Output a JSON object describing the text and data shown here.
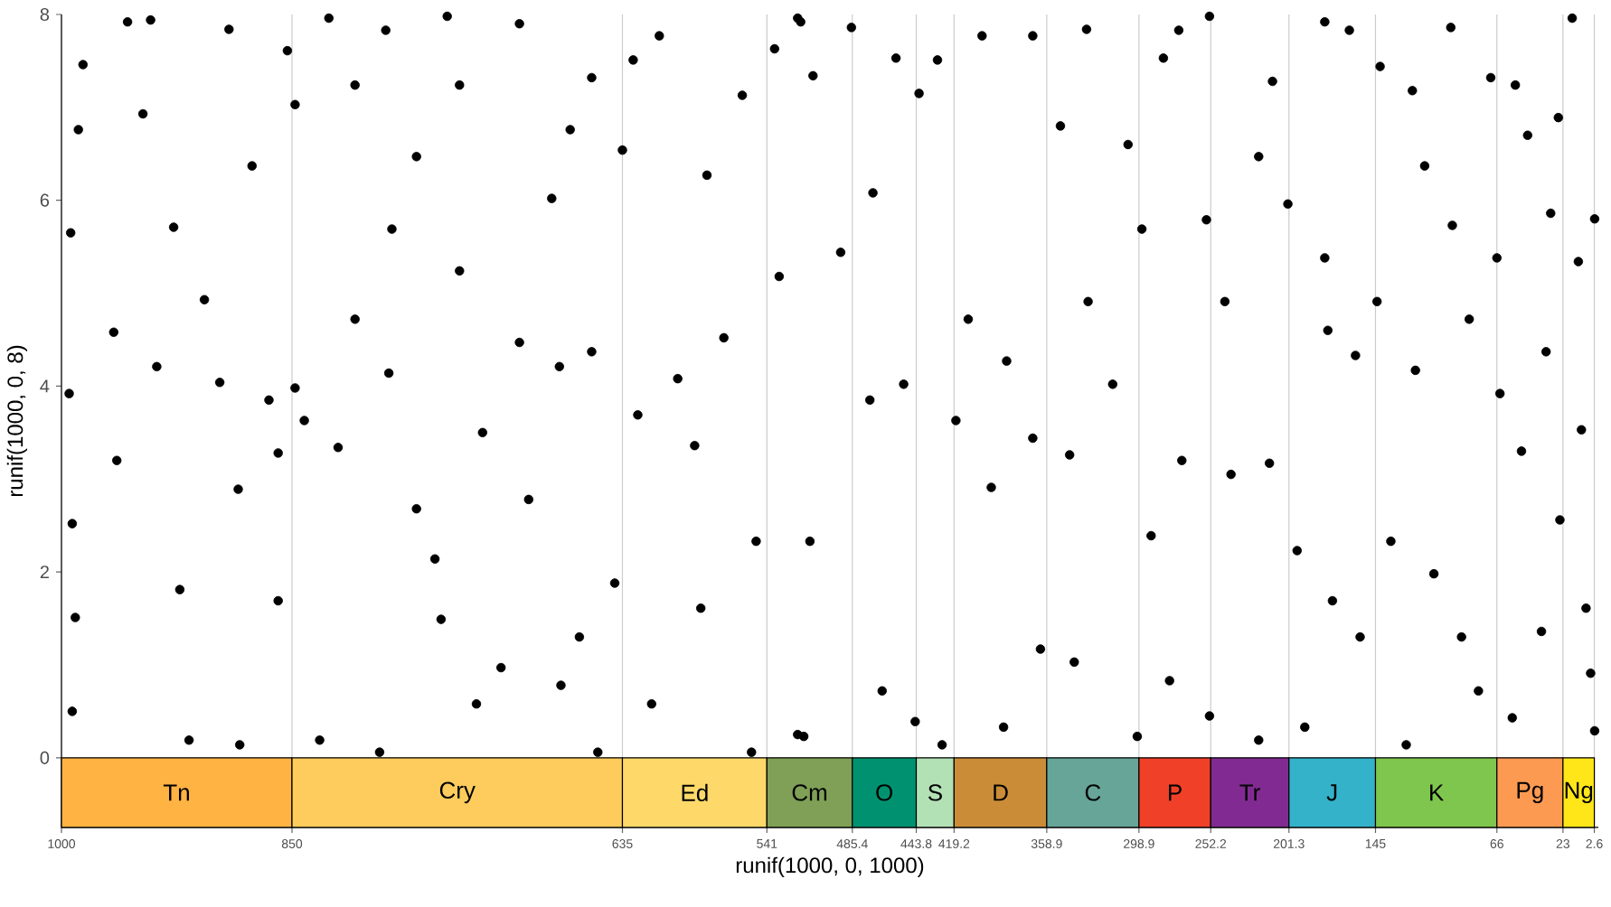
{
  "chart_data": {
    "type": "scatter",
    "xlabel": "runif(1000, 0, 1000)",
    "ylabel": "runif(1000, 0, 8)",
    "color": "#000000",
    "marker": "circle",
    "grid": "x",
    "xlim": [
      1000,
      0
    ],
    "ylim": [
      -0.75,
      8
    ],
    "xticks": [
      1000,
      850,
      635,
      541,
      485.4,
      443.8,
      419.2,
      358.9,
      298.9,
      252.2,
      201.3,
      145,
      66,
      23,
      2.6
    ],
    "yticks": [
      0,
      2,
      4,
      6,
      8
    ],
    "x": [
      957,
      986,
      989,
      994,
      995,
      993,
      991,
      993,
      966,
      964,
      947,
      942,
      938,
      923,
      917,
      927,
      907,
      891,
      897,
      885,
      884,
      876,
      865,
      859,
      853,
      859,
      848,
      848,
      842,
      832,
      826,
      820,
      809,
      809,
      793,
      789,
      785,
      787,
      769,
      769,
      757,
      749,
      753,
      741,
      741,
      726,
      730,
      714,
      702,
      702,
      696,
      681,
      676,
      675,
      669,
      663,
      655,
      655,
      651,
      640,
      635,
      628,
      625,
      616,
      611,
      599,
      588,
      584,
      580,
      569,
      557,
      551,
      548,
      536,
      533,
      521,
      521,
      519,
      511,
      493,
      513,
      517,
      486,
      472,
      474,
      466,
      457,
      452,
      444.5,
      442,
      430,
      427,
      418,
      410,
      401,
      395,
      385,
      387,
      368,
      368,
      363,
      350,
      344,
      341,
      333,
      332,
      316,
      306,
      300,
      297,
      291,
      283,
      279,
      273,
      271,
      253,
      255,
      253,
      243,
      239,
      221,
      221,
      214,
      212,
      202,
      196,
      191,
      178,
      178,
      176,
      173,
      162,
      158,
      155,
      144,
      142,
      135,
      125,
      121,
      119,
      113,
      107,
      96,
      95,
      89,
      84,
      78,
      70,
      66,
      64,
      56,
      54,
      50,
      46,
      34,
      37,
      31,
      26,
      25,
      17,
      13,
      11,
      8,
      5,
      2.4,
      2.4
    ],
    "values": [
      7.92,
      7.46,
      6.76,
      5.65,
      3.92,
      2.52,
      1.51,
      0.5,
      4.58,
      3.2,
      6.93,
      7.94,
      4.21,
      1.81,
      0.19,
      5.71,
      4.93,
      7.84,
      4.04,
      2.89,
      0.14,
      6.37,
      3.85,
      3.28,
      7.61,
      1.69,
      7.03,
      3.98,
      3.63,
      0.19,
      7.96,
      3.34,
      7.24,
      4.72,
      0.06,
      7.83,
      5.69,
      4.14,
      6.47,
      2.68,
      2.14,
      7.98,
      1.49,
      7.24,
      5.24,
      3.5,
      0.58,
      0.97,
      4.47,
      7.9,
      2.78,
      6.02,
      4.21,
      0.78,
      6.76,
      1.3,
      4.37,
      7.32,
      0.06,
      1.88,
      6.54,
      7.51,
      3.69,
      0.58,
      7.77,
      4.08,
      3.36,
      1.61,
      6.27,
      4.52,
      7.13,
      0.06,
      2.33,
      7.63,
      5.18,
      7.96,
      0.25,
      7.92,
      7.34,
      5.44,
      2.33,
      0.23,
      7.86,
      6.08,
      3.85,
      0.72,
      7.53,
      4.02,
      0.39,
      7.15,
      7.51,
      0.14,
      3.63,
      4.72,
      7.77,
      2.91,
      4.27,
      0.33,
      7.77,
      3.44,
      1.17,
      6.8,
      3.26,
      1.03,
      7.84,
      4.91,
      4.02,
      6.6,
      0.23,
      5.69,
      2.39,
      7.53,
      0.83,
      7.83,
      3.2,
      7.98,
      5.79,
      0.45,
      4.91,
      3.05,
      0.19,
      6.47,
      3.17,
      7.28,
      5.96,
      2.23,
      0.33,
      7.92,
      5.38,
      4.6,
      1.69,
      7.83,
      4.33,
      1.3,
      4.91,
      7.44,
      2.33,
      0.14,
      7.18,
      4.17,
      6.37,
      1.98,
      7.86,
      5.73,
      1.3,
      4.72,
      0.72,
      7.32,
      5.38,
      3.92,
      0.43,
      7.24,
      3.3,
      6.7,
      4.37,
      1.36,
      5.86,
      6.89,
      2.56,
      7.96,
      5.34,
      3.53,
      1.61,
      0.91,
      5.8,
      0.29
    ],
    "bands": [
      {
        "axis": "x",
        "from": 1000,
        "to": 850,
        "label": "Tn",
        "color": "#feb342"
      },
      {
        "axis": "x",
        "from": 850,
        "to": 635,
        "label": "Cry",
        "color": "#fecc5c"
      },
      {
        "axis": "x",
        "from": 635,
        "to": 541,
        "label": "Ed",
        "color": "#fed96a"
      },
      {
        "axis": "x",
        "from": 541,
        "to": 485.4,
        "label": "Cm",
        "color": "#7fa056"
      },
      {
        "axis": "x",
        "from": 485.4,
        "to": 443.8,
        "label": "O",
        "color": "#009270"
      },
      {
        "axis": "x",
        "from": 443.8,
        "to": 419.2,
        "label": "S",
        "color": "#b3e1b6"
      },
      {
        "axis": "x",
        "from": 419.2,
        "to": 358.9,
        "label": "D",
        "color": "#cb8c37"
      },
      {
        "axis": "x",
        "from": 358.9,
        "to": 298.9,
        "label": "C",
        "color": "#67a599"
      },
      {
        "axis": "x",
        "from": 298.9,
        "to": 252.2,
        "label": "P",
        "color": "#f04028"
      },
      {
        "axis": "x",
        "from": 252.2,
        "to": 201.3,
        "label": "Tr",
        "color": "#812b92"
      },
      {
        "axis": "x",
        "from": 201.3,
        "to": 145,
        "label": "J",
        "color": "#34b2c9"
      },
      {
        "axis": "x",
        "from": 145,
        "to": 66,
        "label": "K",
        "color": "#7fc64e"
      },
      {
        "axis": "x",
        "from": 66,
        "to": 23,
        "label": "Pg",
        "color": "#fd9a52"
      },
      {
        "axis": "x",
        "from": 23,
        "to": 2.6,
        "label": "Ng",
        "color": "#ffe619"
      }
    ]
  }
}
